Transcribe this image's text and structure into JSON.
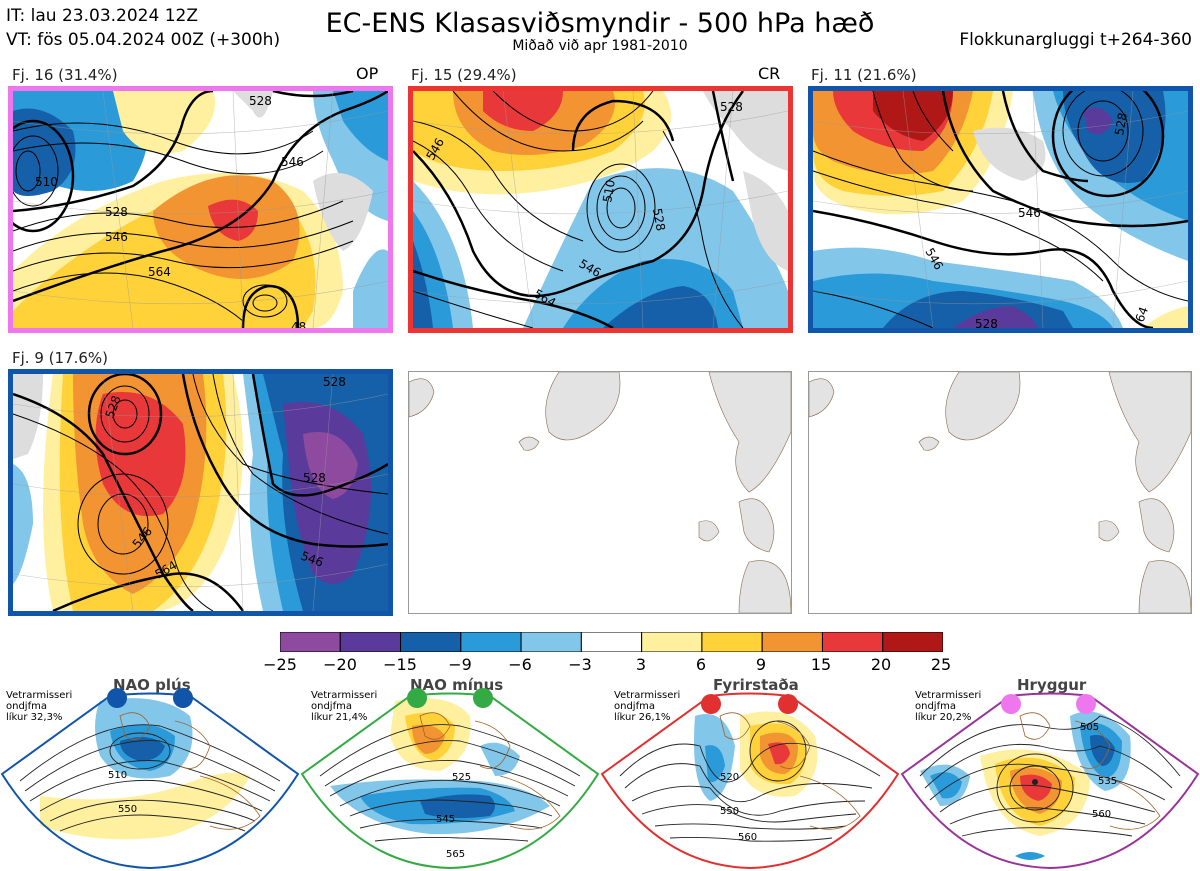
{
  "header": {
    "it": "IT: lau 23.03.2024 12Z",
    "vt": "VT: fös 05.04.2024 00Z  (+300h)",
    "title": "EC-ENS Klasasviðsmyndir - 500 hPa hæð",
    "subtitle": "Miðað við apr 1981-2010",
    "window": "Flokkunargluggi t+264-360"
  },
  "clusters": [
    {
      "label": "Fj. 16 (31.4%)",
      "tag": "OP",
      "border": "#ee77ee"
    },
    {
      "label": "Fj. 15 (29.4%)",
      "tag": "CR",
      "border": "#ee3333"
    },
    {
      "label": "Fj. 11 (21.6%)",
      "tag": "",
      "border": "#1155aa"
    },
    {
      "label": "Fj. 9 (17.6%)",
      "tag": "",
      "border": "#1155aa"
    }
  ],
  "contour_labels": {
    "p1": [
      "528",
      "546",
      "564",
      "510",
      "546",
      "48",
      "528"
    ],
    "p2": [
      "510",
      "528",
      "546",
      "564",
      "528",
      "546"
    ],
    "p3": [
      "528",
      "546",
      "546",
      "528",
      "64"
    ],
    "p4": [
      "528",
      "528",
      "546",
      "564",
      "546",
      "528"
    ]
  },
  "colorbar": {
    "ticks": [
      "−25",
      "−20",
      "−15",
      "−9",
      "−6",
      "−3",
      "3",
      "6",
      "9",
      "15",
      "20",
      "25"
    ],
    "colors": [
      "#8e4a9e",
      "#5a3a9a",
      "#1560a8",
      "#2a9ad8",
      "#82c6ea",
      "#ffffff",
      "#fff0a0",
      "#ffd23a",
      "#f39433",
      "#e8383a",
      "#b01818"
    ]
  },
  "regimes": [
    {
      "title": "NAO plús",
      "note": [
        "Vetrarmisseri",
        "ondjfma",
        "líkur 32,3%"
      ],
      "border": "#1155aa",
      "dot": "#1155aa",
      "labels": [
        "510",
        "550"
      ]
    },
    {
      "title": "NAO mínus",
      "note": [
        "Vetrarmisseri",
        "ondjfma",
        "líkur 21,4%"
      ],
      "border": "#33aa44",
      "dot": "#33aa44",
      "labels": [
        "525",
        "545",
        "565"
      ]
    },
    {
      "title": "Fyrirstaða",
      "note": [
        "Vetrarmisseri",
        "ondjfma",
        "líkur 26,1%"
      ],
      "border": "#e03030",
      "dot": "#e03030",
      "labels": [
        "520",
        "550",
        "560"
      ]
    },
    {
      "title": "Hryggur",
      "note": [
        "Vetrarmisseri",
        "ondjfma",
        "líkur 20,2%"
      ],
      "border": "#993399",
      "dot": "#ee77ee",
      "labels": [
        "505",
        "535",
        "560"
      ]
    }
  ]
}
